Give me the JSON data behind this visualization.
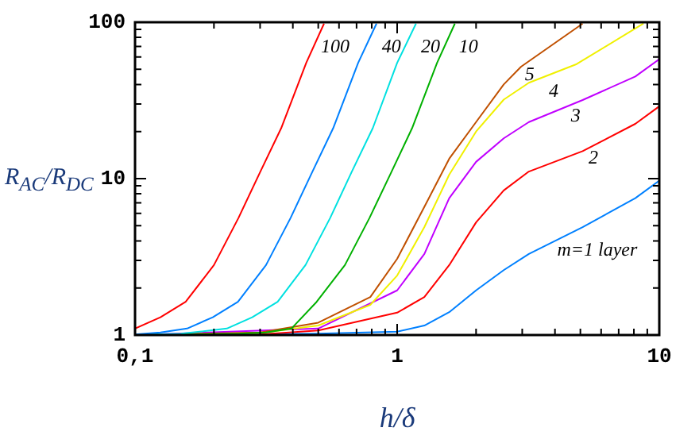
{
  "chart_data": {
    "type": "line",
    "xlabel": "h/δ",
    "ylabel": "R$_{AC}$/R$_{DC}$",
    "log": "xy",
    "marker": "none",
    "line_style": "solid",
    "legend": false,
    "grid": false,
    "xlim": [
      0.1,
      10
    ],
    "xticks": [
      {
        "value": 0.1,
        "label": "0,1"
      },
      {
        "value": 0.2,
        "label": null
      },
      {
        "value": 0.3,
        "label": null
      },
      {
        "value": 0.4,
        "label": null
      },
      {
        "value": 0.5,
        "label": null
      },
      {
        "value": 0.6,
        "label": null
      },
      {
        "value": 0.7,
        "label": null
      },
      {
        "value": 0.8,
        "label": null
      },
      {
        "value": 0.9,
        "label": null
      },
      1,
      {
        "value": 2,
        "label": null
      },
      {
        "value": 3,
        "label": null
      },
      {
        "value": 4,
        "label": null
      },
      {
        "value": 5,
        "label": null
      },
      {
        "value": 6,
        "label": null
      },
      {
        "value": 7,
        "label": null
      },
      {
        "value": 8,
        "label": null
      },
      {
        "value": 9,
        "label": null
      },
      10
    ],
    "ylim": [
      1,
      100
    ],
    "yticks": [
      1,
      {
        "value": 2,
        "label": null
      },
      {
        "value": 3,
        "label": null
      },
      {
        "value": 4,
        "label": null
      },
      {
        "value": 5,
        "label": null
      },
      {
        "value": 6,
        "label": null
      },
      {
        "value": 7,
        "label": null
      },
      {
        "value": 8,
        "label": null
      },
      {
        "value": 9,
        "label": null
      },
      10,
      {
        "value": 20,
        "label": null
      },
      {
        "value": 30,
        "label": null
      },
      {
        "value": 40,
        "label": null
      },
      {
        "value": 50,
        "label": null
      },
      {
        "value": 60,
        "label": null
      },
      {
        "value": 70,
        "label": null
      },
      {
        "value": 80,
        "label": null
      },
      {
        "value": 90,
        "label": null
      },
      100
    ],
    "series": [
      {
        "name": "100",
        "color": "#ff0000",
        "x": [
          0.1,
          0.125,
          0.156,
          0.2,
          0.248,
          0.3,
          0.361,
          0.45,
          0.526
        ],
        "values": [
          1.1,
          1.3,
          1.63,
          2.8,
          5.6,
          11,
          21,
          55,
          98
        ]
      },
      {
        "name": "40",
        "color": "#0080ff",
        "x": [
          0.1,
          0.125,
          0.158,
          0.198,
          0.247,
          0.316,
          0.392,
          0.474,
          0.57,
          0.71,
          0.834
        ],
        "values": [
          1.01,
          1.04,
          1.1,
          1.3,
          1.63,
          2.8,
          5.6,
          11,
          21,
          55,
          98
        ]
      },
      {
        "name": "20",
        "color": "#00e0e0",
        "x": [
          0.1,
          0.15,
          0.224,
          0.28,
          0.35,
          0.447,
          0.555,
          0.67,
          0.807,
          1.0,
          1.18
        ],
        "values": [
          1.0,
          1.02,
          1.1,
          1.3,
          1.63,
          2.8,
          5.6,
          11,
          21,
          55,
          98
        ]
      },
      {
        "name": "10",
        "color": "#00b000",
        "x": [
          0.1,
          0.25,
          0.316,
          0.395,
          0.493,
          0.632,
          0.784,
          0.95,
          1.14,
          1.42,
          1.66
        ],
        "values": [
          1.0,
          1.02,
          1.04,
          1.1,
          1.63,
          2.8,
          5.6,
          11,
          21,
          55,
          98
        ]
      },
      {
        "name": "5",
        "color": "#c05000",
        "x": [
          0.1,
          0.3,
          0.5,
          0.79,
          1.0,
          1.27,
          1.58,
          2.0,
          2.55,
          2.97,
          5.1
        ],
        "values": [
          1.0,
          1.04,
          1.2,
          1.75,
          3.07,
          6.6,
          13.4,
          23,
          40,
          52,
          98
        ]
      },
      {
        "name": "4",
        "color": "#f0f000",
        "x": [
          0.1,
          0.3,
          0.5,
          0.79,
          1.0,
          1.27,
          1.58,
          2.0,
          2.55,
          3.18,
          4.84,
          8.7
        ],
        "values": [
          1.0,
          1.03,
          1.15,
          1.56,
          2.4,
          4.9,
          10.6,
          20,
          32,
          41,
          54,
          98
        ]
      },
      {
        "name": "3",
        "color": "#c000ff",
        "x": [
          0.1,
          0.5,
          1.0,
          1.27,
          1.58,
          2.0,
          2.55,
          3.18,
          5.1,
          8.1,
          10
        ],
        "values": [
          1.0,
          1.1,
          1.93,
          3.3,
          7.5,
          12.8,
          18.1,
          23,
          31.8,
          45,
          58
        ]
      },
      {
        "name": "2",
        "color": "#ff0000",
        "x": [
          0.1,
          0.3,
          0.5,
          1.0,
          1.27,
          1.58,
          2.0,
          2.55,
          3.18,
          5.1,
          8.1,
          10
        ],
        "values": [
          1.0,
          1.01,
          1.07,
          1.39,
          1.75,
          2.8,
          5.25,
          8.4,
          11.1,
          15,
          22.4,
          29
        ]
      },
      {
        "name": "m=1 layer",
        "color": "#0080ff",
        "x": [
          0.1,
          0.5,
          1.0,
          1.27,
          1.58,
          2.0,
          2.55,
          3.18,
          5.1,
          8.1,
          10
        ],
        "values": [
          1.0,
          1.02,
          1.05,
          1.15,
          1.4,
          1.93,
          2.6,
          3.3,
          4.9,
          7.5,
          9.7
        ]
      }
    ]
  }
}
